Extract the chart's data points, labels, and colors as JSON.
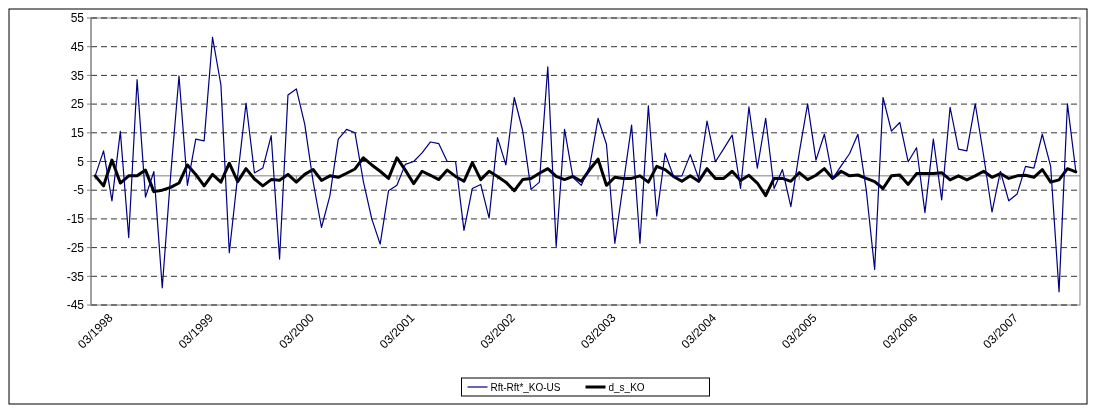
{
  "chart_data": {
    "type": "line",
    "categories": [
      "03/1998",
      null,
      null,
      null,
      null,
      null,
      null,
      null,
      null,
      null,
      null,
      null,
      "03/1999",
      null,
      null,
      null,
      null,
      null,
      null,
      null,
      null,
      null,
      null,
      null,
      "03/2000",
      null,
      null,
      null,
      null,
      null,
      null,
      null,
      null,
      null,
      null,
      null,
      "03/2001",
      null,
      null,
      null,
      null,
      null,
      null,
      null,
      null,
      null,
      null,
      null,
      "03/2002",
      null,
      null,
      null,
      null,
      null,
      null,
      null,
      null,
      null,
      null,
      null,
      "03/2003",
      null,
      null,
      null,
      null,
      null,
      null,
      null,
      null,
      null,
      null,
      null,
      "03/2004",
      null,
      null,
      null,
      null,
      null,
      null,
      null,
      null,
      null,
      null,
      null,
      "03/2005",
      null,
      null,
      null,
      null,
      null,
      null,
      null,
      null,
      null,
      null,
      null,
      "03/2006",
      null,
      null,
      null,
      null,
      null,
      null,
      null,
      null,
      null,
      null,
      null,
      "03/2007",
      null,
      null,
      null,
      null,
      null,
      null,
      null,
      null,
      null
    ],
    "series": [
      {
        "name": "Rft-Rft*_KO-US",
        "color": "#000080",
        "values": [
          0,
          8.7,
          -8.7,
          15.5,
          -21.5,
          33.5,
          -7.4,
          1.5,
          -39,
          0,
          34.8,
          -3.3,
          12.8,
          12.2,
          48.3,
          31.7,
          -26.8,
          0,
          25.3,
          1,
          2.7,
          14,
          -29,
          28.2,
          30.3,
          18,
          -2,
          -18,
          -7,
          12.8,
          16.2,
          15,
          -2,
          -15,
          -23.8,
          -5.2,
          -3.3,
          4,
          5,
          8,
          11.8,
          11.2,
          5,
          5,
          -19,
          -4.4,
          -3,
          -14.7,
          13.3,
          3.8,
          27.3,
          15.8,
          -4.7,
          -2.2,
          38,
          -24.6,
          16.2,
          -0.5,
          -3.3,
          3.3,
          20,
          11,
          -23.5,
          -3,
          17.7,
          -23.5,
          24.4,
          -14,
          7.9,
          -0.2,
          0,
          7.4,
          -0.9,
          19.1,
          4.9,
          9.5,
          14.2,
          -4.4,
          24,
          2.7,
          20,
          -4.4,
          2.2,
          -10.7,
          8,
          25.1,
          5.5,
          14.5,
          -0.9,
          3.5,
          7.7,
          14.5,
          -5,
          -32.6,
          27.3,
          15.6,
          18.6,
          4.9,
          9.8,
          -12.8,
          12.8,
          -8.4,
          23.9,
          9.3,
          8.7,
          25.1,
          7.1,
          -12.6,
          1.6,
          -8.7,
          -6.3,
          3.3,
          2.7,
          14.5,
          3.3,
          -40.4,
          25.1,
          1.6
        ]
      },
      {
        "name": "d_s_KO",
        "color": "#000000",
        "values": [
          0,
          -3.5,
          5.5,
          -2.5,
          0,
          0,
          2,
          -5.5,
          -5,
          -4,
          -2.5,
          3.8,
          0.5,
          -3.5,
          0.5,
          -2.2,
          4.4,
          -2,
          2.5,
          -1.1,
          -3.5,
          -1.3,
          -1.5,
          0.5,
          -2.2,
          0.5,
          2.2,
          -1.6,
          0,
          -0.5,
          0.9,
          2.4,
          6.3,
          3.8,
          1.6,
          -0.9,
          6.3,
          2,
          -2.7,
          1.6,
          0.2,
          -1.3,
          2,
          -0.2,
          -1.9,
          4.6,
          -1.3,
          1.6,
          -0.2,
          -2.2,
          -5.2,
          -1.3,
          -0.9,
          0.9,
          2.5,
          -0.2,
          -1.3,
          -0.2,
          -1.9,
          2.2,
          5.8,
          -3.3,
          -0.5,
          -0.9,
          -0.9,
          0,
          -2.2,
          3.3,
          2.2,
          -0.2,
          -1.9,
          0,
          -1.9,
          2.5,
          -0.9,
          -0.9,
          1.6,
          -1.6,
          0.2,
          -2.5,
          -6.9,
          -0.9,
          -0.9,
          -1.9,
          1.1,
          -1.3,
          0.2,
          2.5,
          -0.9,
          1.6,
          0,
          0.3,
          -0.9,
          -2,
          -4.4,
          0,
          0.3,
          -3,
          0.8,
          0.8,
          0.8,
          1.1,
          -1.4,
          0,
          -1.4,
          0,
          1.6,
          -0.5,
          0.8,
          -0.9,
          0,
          0.2,
          -0.5,
          2.2,
          -2.2,
          -1.4,
          2.5,
          1.4
        ]
      }
    ],
    "ylim": [
      -45,
      55
    ],
    "yticks": [
      -45,
      -35,
      -25,
      -15,
      -5,
      5,
      15,
      25,
      35,
      45,
      55
    ],
    "grid": "y",
    "legend": "bottom",
    "line_style": "solid",
    "marker": "none"
  }
}
